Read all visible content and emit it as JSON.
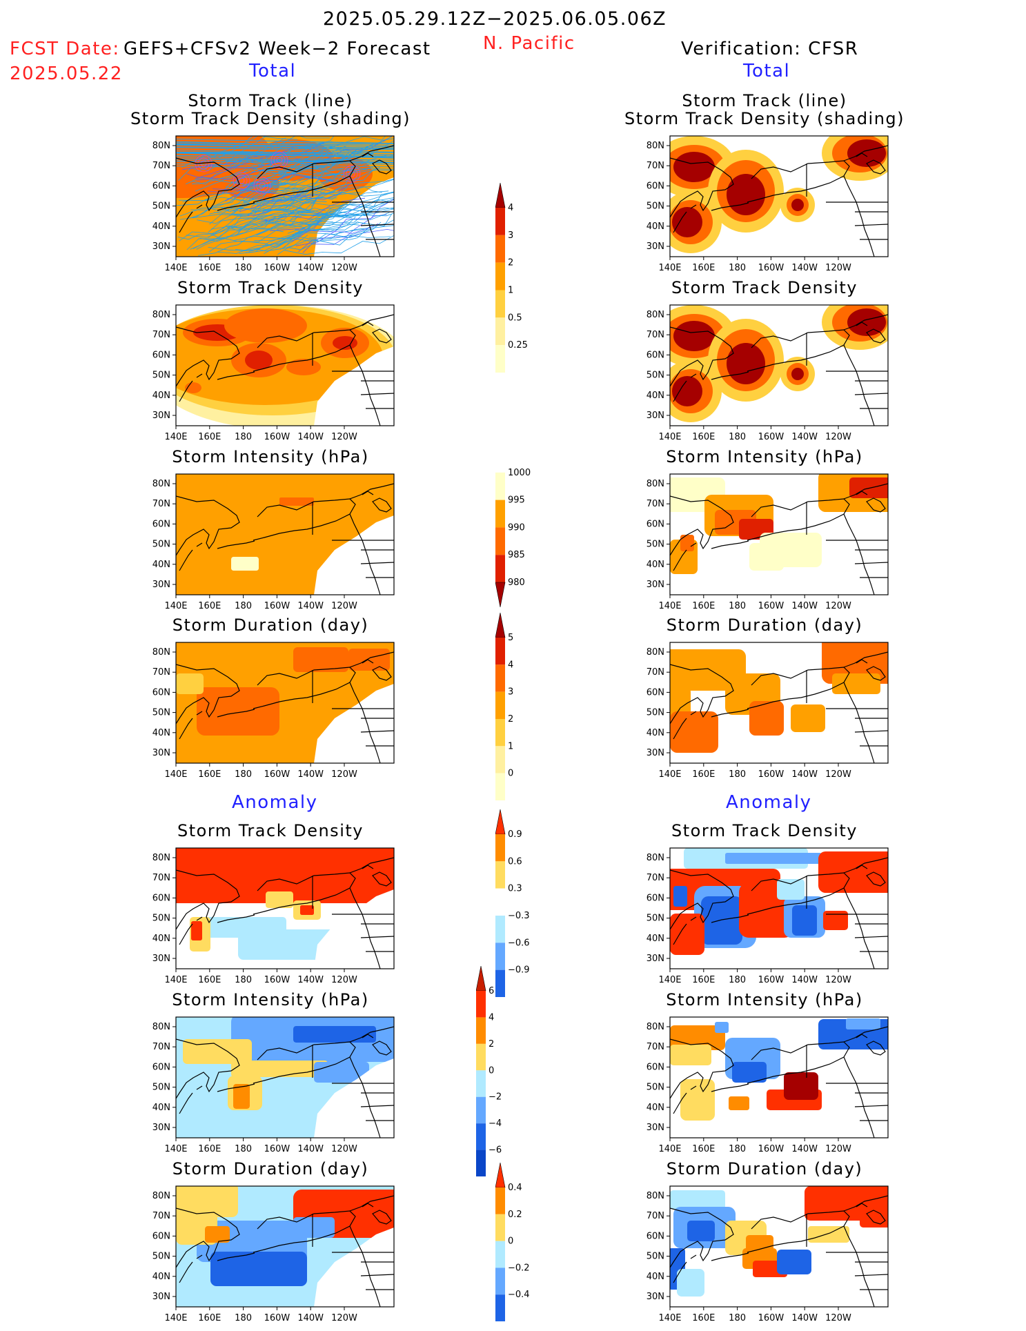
{
  "header": {
    "period": "2025.05.29.12Z−2025.06.05.06Z",
    "region": "N. Pacific",
    "fcst_label": "FCST Date:",
    "fcst_model": "GEFS+CFSv2 Week−2 Forecast",
    "fcst_date": "2025.05.22",
    "verification": "Verification: CFSR",
    "total_left": "Total",
    "total_right": "Total",
    "anomaly_left": "Anomaly",
    "anomaly_right": "Anomaly"
  },
  "panel_titles": {
    "track_line": "Storm Track (line)",
    "track_shading": "Storm Track Density (shading)",
    "density": "Storm Track Density",
    "intensity": "Storm Intensity (hPa)",
    "duration": "Storm Duration (day)"
  },
  "axes": {
    "lat_ticks": [
      "80N",
      "70N",
      "60N",
      "50N",
      "40N",
      "30N"
    ],
    "lon_ticks": [
      "140E",
      "160E",
      "180",
      "160W",
      "140W",
      "120W"
    ]
  },
  "colorbars": {
    "density_total": {
      "labels": [
        "4",
        "3",
        "2",
        "1",
        "0.5",
        "0.25"
      ],
      "colors": [
        "#a50000",
        "#e02000",
        "#ff6a00",
        "#ffa000",
        "#ffd040",
        "#fff0a0",
        "#ffffc8"
      ]
    },
    "intensity_total": {
      "labels": [
        "1000",
        "995",
        "990",
        "985",
        "980"
      ],
      "colors": [
        "#ffffff",
        "#ffffc8",
        "#ffa000",
        "#ff6a00",
        "#e02000",
        "#a50000"
      ]
    },
    "duration_total": {
      "labels": [
        "5",
        "4",
        "3",
        "2",
        "1",
        "0"
      ],
      "colors": [
        "#a50000",
        "#e02000",
        "#ff6a00",
        "#ffa000",
        "#ffd040",
        "#fff0a0",
        "#ffffc8"
      ]
    },
    "density_anom": {
      "labels": [
        "0.9",
        "0.6",
        "0.3",
        "−0.3",
        "−0.6",
        "−0.9"
      ],
      "colors": [
        "#ff3000",
        "#ff8c00",
        "#ffdc60",
        "#ffffff",
        "#b0eaff",
        "#64a8ff",
        "#1e64e6"
      ]
    },
    "intensity_anom": {
      "labels": [
        "6",
        "4",
        "2",
        "0",
        "−2",
        "−4",
        "−6"
      ],
      "colors": [
        "#c81e00",
        "#ff3000",
        "#ff8c00",
        "#ffdc60",
        "#b0eaff",
        "#64a8ff",
        "#1e64e6",
        "#0a46c8"
      ]
    },
    "duration_anom": {
      "labels": [
        "0.4",
        "0.2",
        "0",
        "−0.2",
        "−0.4"
      ],
      "colors": [
        "#ff3000",
        "#ff8c00",
        "#ffdc60",
        "#b0eaff",
        "#64a8ff",
        "#1e64e6"
      ]
    }
  },
  "chart_data": [
    {
      "type": "heatmap",
      "title": "Storm Track (line) / Storm Track Density (shading)",
      "column": "GEFS+CFSv2 Week-2 Forecast",
      "section": "Total",
      "note": "dense ensemble track lines over basin"
    },
    {
      "type": "heatmap",
      "title": "Storm Track (line) / Storm Track Density (shading)",
      "column": "Verification: CFSR",
      "section": "Total"
    },
    {
      "type": "heatmap",
      "title": "Storm Track Density",
      "column": "GEFS+CFSv2 Week-2 Forecast",
      "section": "Total",
      "color_levels": [
        0.25,
        0.5,
        1,
        2,
        3,
        4
      ]
    },
    {
      "type": "heatmap",
      "title": "Storm Track Density",
      "column": "Verification: CFSR",
      "section": "Total",
      "color_levels": [
        0.25,
        0.5,
        1,
        2,
        3,
        4
      ]
    },
    {
      "type": "heatmap",
      "title": "Storm Intensity (hPa)",
      "column": "GEFS+CFSv2 Week-2 Forecast",
      "section": "Total",
      "color_levels": [
        1000,
        995,
        990,
        985,
        980
      ]
    },
    {
      "type": "heatmap",
      "title": "Storm Intensity (hPa)",
      "column": "Verification: CFSR",
      "section": "Total",
      "color_levels": [
        1000,
        995,
        990,
        985,
        980
      ]
    },
    {
      "type": "heatmap",
      "title": "Storm Duration (day)",
      "column": "GEFS+CFSv2 Week-2 Forecast",
      "section": "Total",
      "color_levels": [
        0,
        1,
        2,
        3,
        4,
        5
      ]
    },
    {
      "type": "heatmap",
      "title": "Storm Duration (day)",
      "column": "Verification: CFSR",
      "section": "Total",
      "color_levels": [
        0,
        1,
        2,
        3,
        4,
        5
      ]
    },
    {
      "type": "heatmap",
      "title": "Storm Track Density",
      "column": "GEFS+CFSv2 Week-2 Forecast",
      "section": "Anomaly",
      "color_levels": [
        -0.9,
        -0.6,
        -0.3,
        0.3,
        0.6,
        0.9
      ]
    },
    {
      "type": "heatmap",
      "title": "Storm Track Density",
      "column": "Verification: CFSR",
      "section": "Anomaly",
      "color_levels": [
        -0.9,
        -0.6,
        -0.3,
        0.3,
        0.6,
        0.9
      ]
    },
    {
      "type": "heatmap",
      "title": "Storm Intensity (hPa)",
      "column": "GEFS+CFSv2 Week-2 Forecast",
      "section": "Anomaly",
      "color_levels": [
        -6,
        -4,
        -2,
        0,
        2,
        4,
        6
      ]
    },
    {
      "type": "heatmap",
      "title": "Storm Intensity (hPa)",
      "column": "Verification: CFSR",
      "section": "Anomaly",
      "color_levels": [
        -6,
        -4,
        -2,
        0,
        2,
        4,
        6
      ]
    },
    {
      "type": "heatmap",
      "title": "Storm Duration (day)",
      "column": "GEFS+CFSv2 Week-2 Forecast",
      "section": "Anomaly",
      "color_levels": [
        -0.4,
        -0.2,
        0,
        0.2,
        0.4
      ]
    },
    {
      "type": "heatmap",
      "title": "Storm Duration (day)",
      "column": "Verification: CFSR",
      "section": "Anomaly",
      "color_levels": [
        -0.4,
        -0.2,
        0,
        0.2,
        0.4
      ]
    }
  ]
}
